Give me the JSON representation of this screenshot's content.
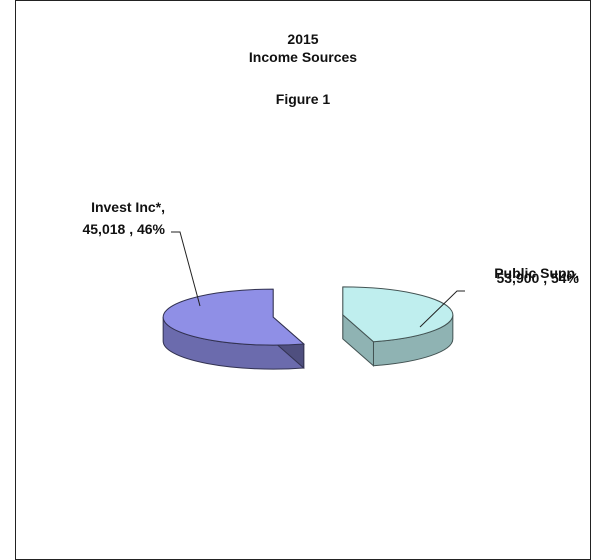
{
  "chart_data": {
    "type": "pie",
    "title": "2015",
    "subtitle": "Income Sources",
    "caption": "Figure 1",
    "slices": [
      {
        "label": "Invest Inc*",
        "value": 45018,
        "value_text": "45,018",
        "percent": 46,
        "percent_text": "46%",
        "color": "#bfeeee"
      },
      {
        "label": "Public Supp",
        "value": 53900,
        "value_text": "53,900",
        "percent": 54,
        "percent_text": "54%",
        "color": "#8f8fe6"
      }
    ],
    "style": "3d-exploded"
  }
}
